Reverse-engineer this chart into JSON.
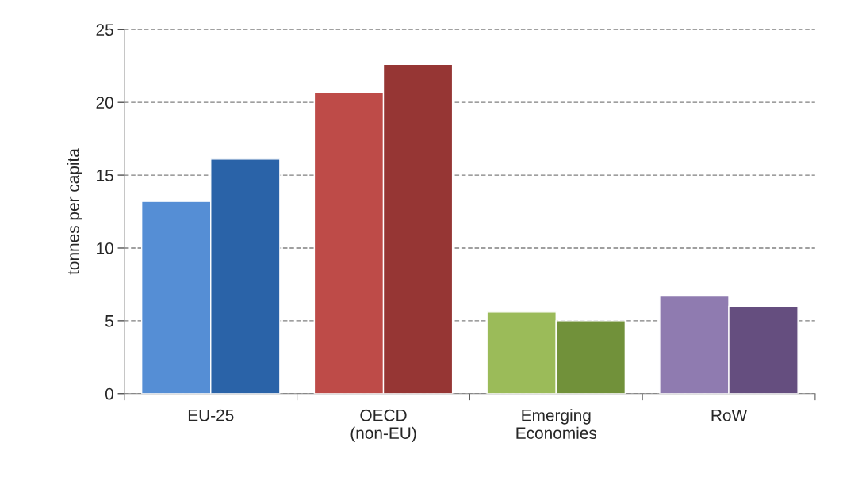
{
  "chart_data": {
    "type": "bar",
    "ylabel": "tonnes per capita",
    "categories": [
      "EU-25",
      "OECD\n(non-EU)",
      "Emerging\nEconomies",
      "RoW"
    ],
    "series": [
      {
        "colors": [
          "#558ed5",
          "#be4b48",
          "#9bbb59",
          "#8f7bb0"
        ],
        "values": [
          13.2,
          20.7,
          5.6,
          6.7
        ]
      },
      {
        "colors": [
          "#2a63a8",
          "#963634",
          "#71913a",
          "#654e7f"
        ],
        "values": [
          16.1,
          22.6,
          5.0,
          6.0
        ]
      }
    ],
    "ylim": [
      0,
      25
    ],
    "yticks": [
      0,
      5,
      10,
      15,
      20,
      25
    ],
    "grid": "y"
  }
}
